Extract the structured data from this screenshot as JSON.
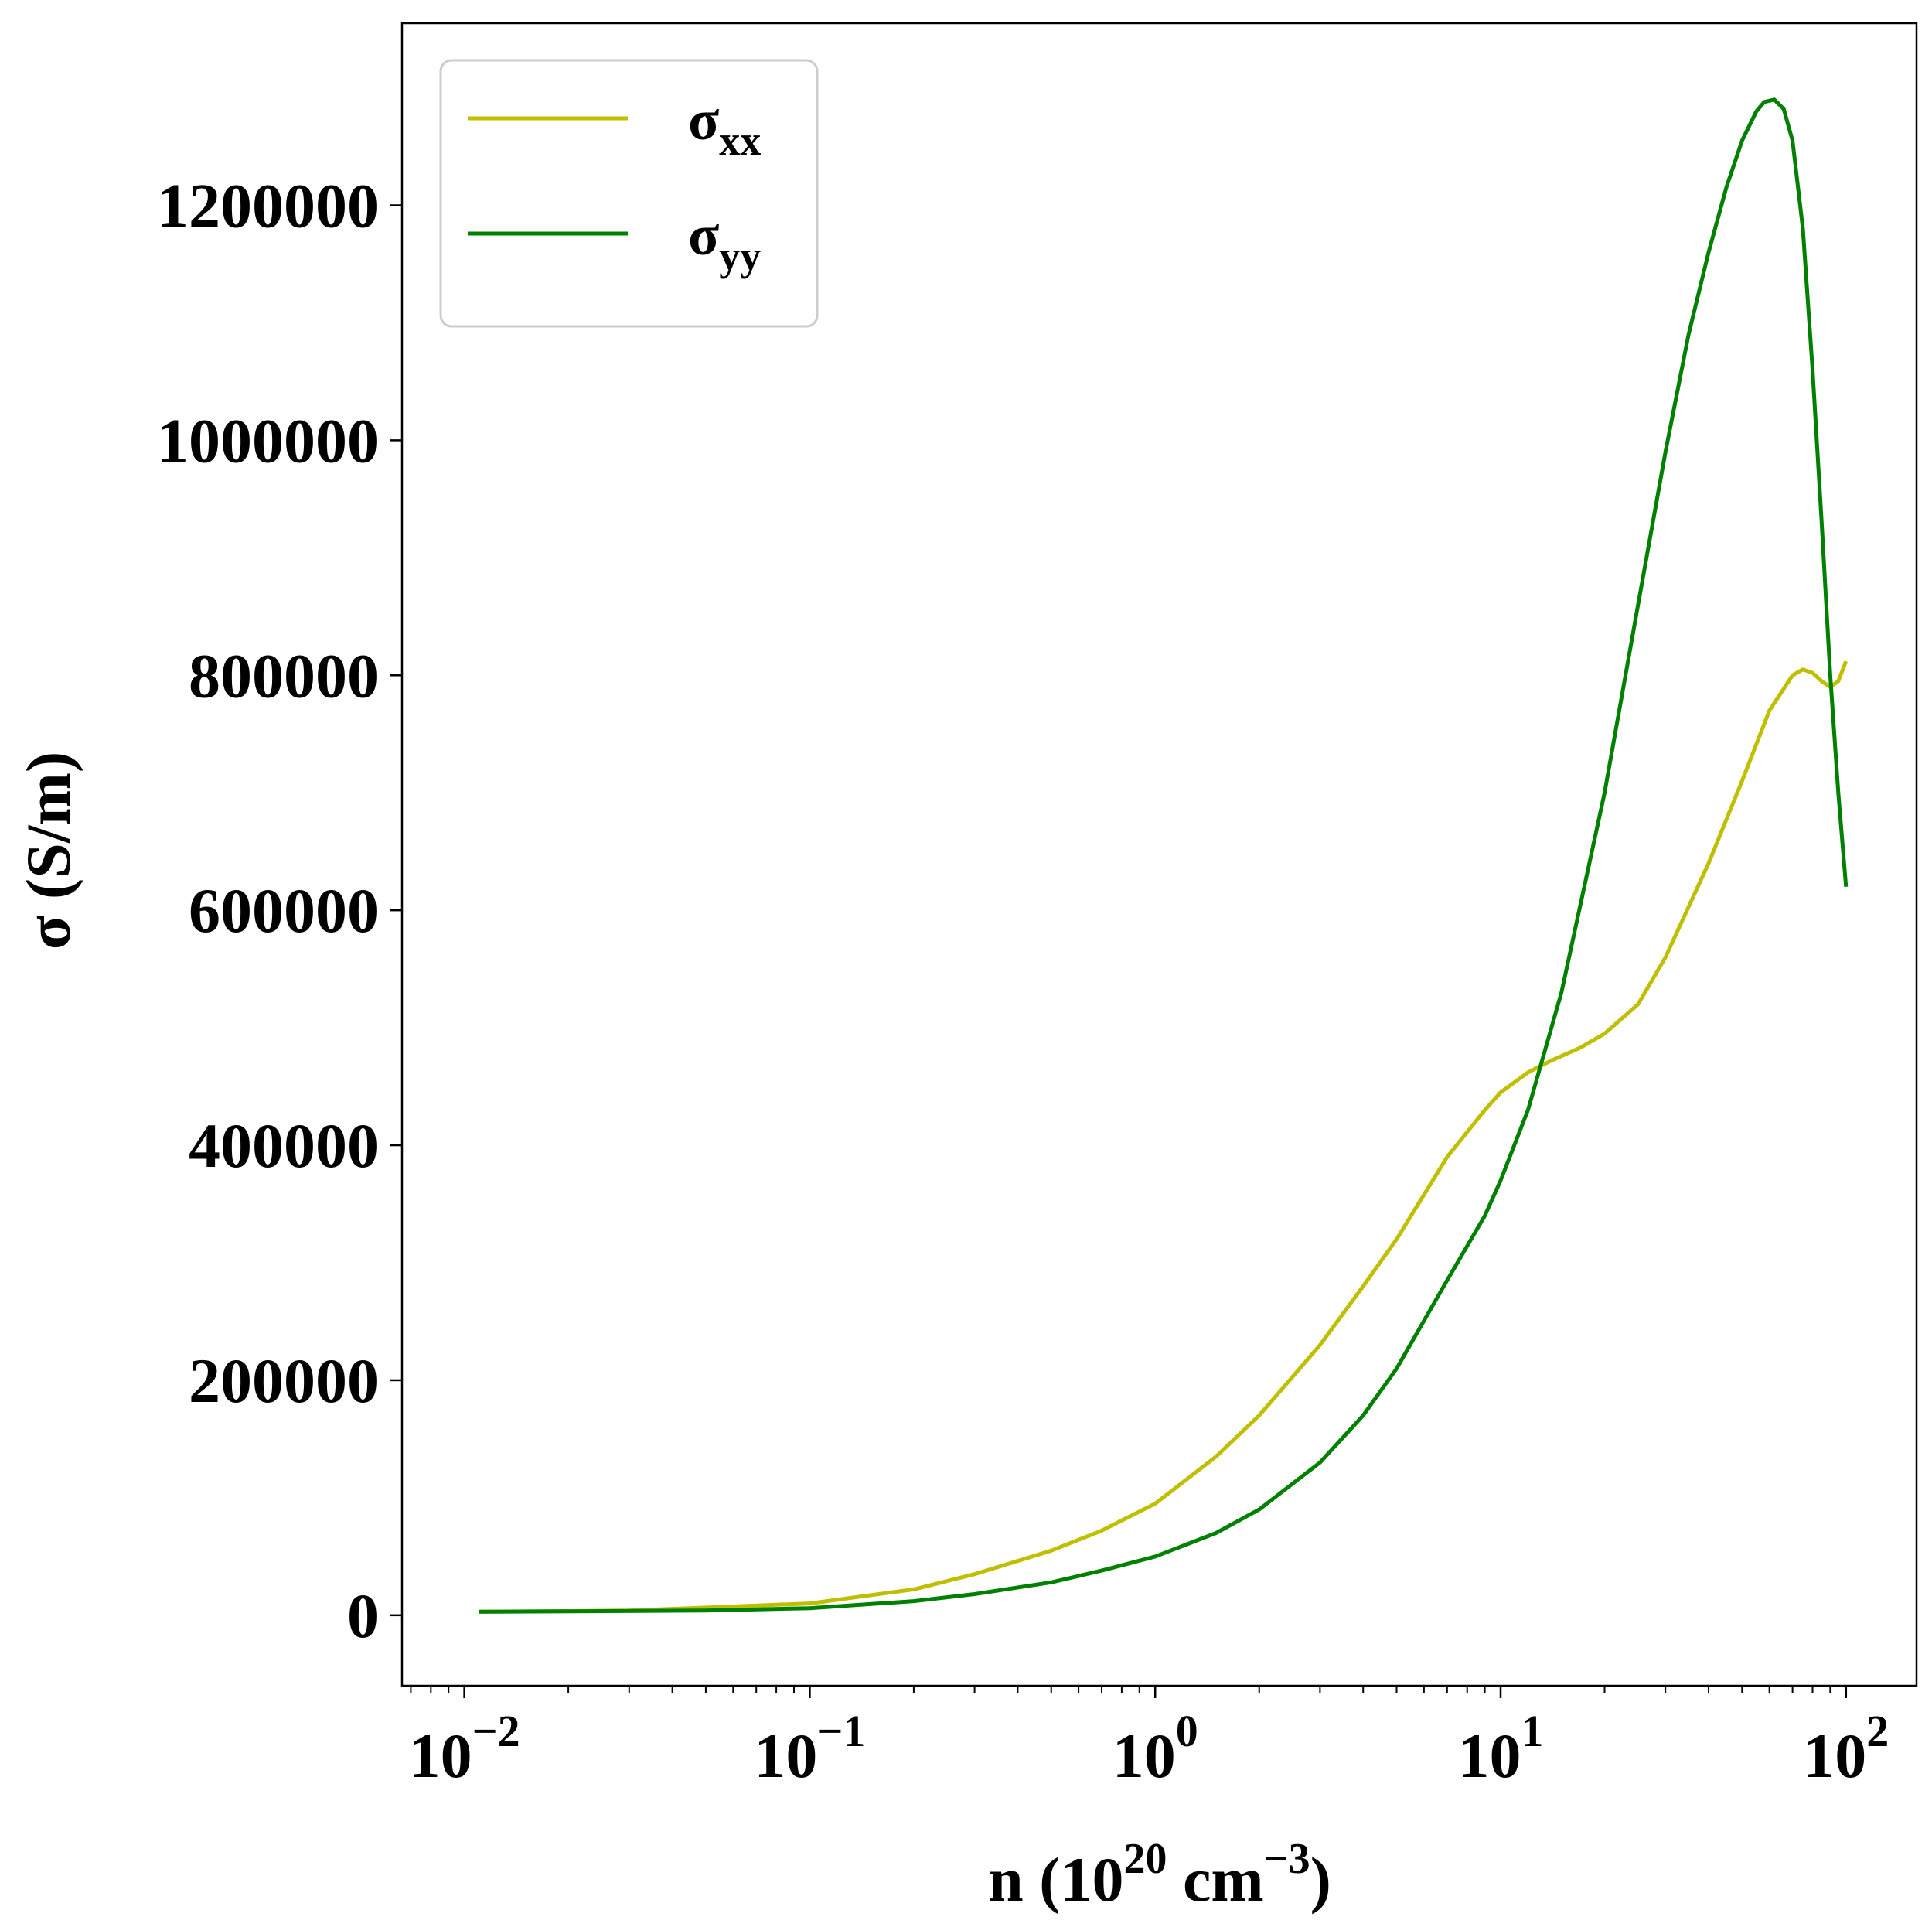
{
  "chart_data": {
    "type": "line",
    "x_scale": "log",
    "xlim": [
      0.0066,
      160
    ],
    "ylim": [
      -60000,
      1355000
    ],
    "grid": false,
    "legend_position": "top-left",
    "xlabel": {
      "base": "n (10",
      "sup1": "20",
      "mid": " cm",
      "sup2": "−3",
      "end": ")"
    },
    "ylabel": "σ (S/m)",
    "x_ticks": [
      {
        "value": 0.01,
        "base": "10",
        "exp": "−2"
      },
      {
        "value": 0.1,
        "base": "10",
        "exp": "−1"
      },
      {
        "value": 1,
        "base": "10",
        "exp": "0"
      },
      {
        "value": 10,
        "base": "10",
        "exp": "1"
      },
      {
        "value": 100,
        "base": "10",
        "exp": "2"
      }
    ],
    "y_ticks": [
      {
        "value": 0,
        "label": "0"
      },
      {
        "value": 200000,
        "label": "200000"
      },
      {
        "value": 400000,
        "label": "400000"
      },
      {
        "value": 600000,
        "label": "600000"
      },
      {
        "value": 800000,
        "label": "800000"
      },
      {
        "value": 1000000,
        "label": "1000000"
      },
      {
        "value": 1200000,
        "label": "1200000"
      }
    ],
    "series": [
      {
        "name": "σxx",
        "symbol": "σ",
        "subscript": "xx",
        "color": "#bfbf00",
        "points": [
          [
            0.011,
            3000
          ],
          [
            0.03,
            4000
          ],
          [
            0.1,
            10000
          ],
          [
            0.2,
            22000
          ],
          [
            0.3,
            35000
          ],
          [
            0.5,
            55000
          ],
          [
            0.7,
            72000
          ],
          [
            1.0,
            95000
          ],
          [
            1.5,
            135000
          ],
          [
            2.0,
            170000
          ],
          [
            3.0,
            230000
          ],
          [
            4.0,
            280000
          ],
          [
            5.0,
            320000
          ],
          [
            7.0,
            390000
          ],
          [
            9.0,
            430000
          ],
          [
            10.0,
            445000
          ],
          [
            12.0,
            462000
          ],
          [
            14.0,
            472000
          ],
          [
            17.0,
            483000
          ],
          [
            20.0,
            495000
          ],
          [
            25.0,
            520000
          ],
          [
            30.0,
            560000
          ],
          [
            40.0,
            640000
          ],
          [
            50.0,
            710000
          ],
          [
            60.0,
            770000
          ],
          [
            70.0,
            800000
          ],
          [
            75.0,
            805000
          ],
          [
            80.0,
            802000
          ],
          [
            85.0,
            795000
          ],
          [
            90.0,
            790000
          ],
          [
            95.0,
            795000
          ],
          [
            100.0,
            812000
          ]
        ]
      },
      {
        "name": "σyy",
        "symbol": "σ",
        "subscript": "yy",
        "color": "#008000",
        "points": [
          [
            0.011,
            3000
          ],
          [
            0.05,
            4000
          ],
          [
            0.1,
            6000
          ],
          [
            0.2,
            12000
          ],
          [
            0.3,
            18000
          ],
          [
            0.5,
            28000
          ],
          [
            0.7,
            38000
          ],
          [
            1.0,
            50000
          ],
          [
            1.5,
            70000
          ],
          [
            2.0,
            90000
          ],
          [
            3.0,
            130000
          ],
          [
            4.0,
            170000
          ],
          [
            5.0,
            210000
          ],
          [
            7.0,
            285000
          ],
          [
            9.0,
            340000
          ],
          [
            10.0,
            370000
          ],
          [
            12.0,
            430000
          ],
          [
            15.0,
            530000
          ],
          [
            20.0,
            700000
          ],
          [
            25.0,
            860000
          ],
          [
            30.0,
            990000
          ],
          [
            35.0,
            1090000
          ],
          [
            40.0,
            1160000
          ],
          [
            45.0,
            1215000
          ],
          [
            50.0,
            1255000
          ],
          [
            55.0,
            1280000
          ],
          [
            58.0,
            1288000
          ],
          [
            62.0,
            1290000
          ],
          [
            66.0,
            1282000
          ],
          [
            70.0,
            1255000
          ],
          [
            75.0,
            1180000
          ],
          [
            80.0,
            1060000
          ],
          [
            85.0,
            930000
          ],
          [
            90.0,
            800000
          ],
          [
            95.0,
            700000
          ],
          [
            100.0,
            620000
          ]
        ]
      }
    ]
  }
}
